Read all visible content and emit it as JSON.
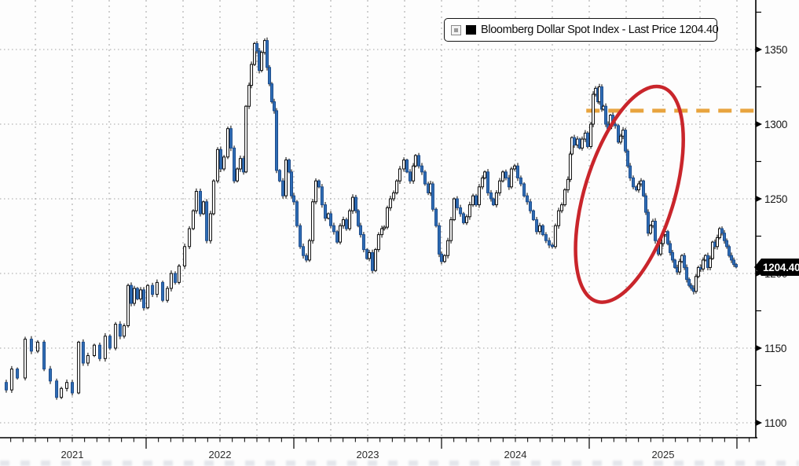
{
  "legend": {
    "label": "Bloomberg Dollar Spot Index - Last Price 1204.40"
  },
  "price_tag": {
    "text": "1204.40"
  },
  "colors": {
    "candle_up_fill": "#ffffff",
    "candle_down_fill": "#2e6cb5",
    "candle_up_stroke": "#0a0a0a",
    "candle_down_stroke": "#1c4c8c",
    "wick": "#000000",
    "grid": "#a4a4a4",
    "axis": "#000000",
    "highlight_red": "#c9252b",
    "resistance_orange": "#e8a43f",
    "tag_bg": "#000000",
    "tag_text": "#ffffff"
  },
  "chart_data": {
    "type": "candlestick",
    "title": "Bloomberg Dollar Spot Index",
    "legend_entry": "Bloomberg Dollar Spot Index - Last Price 1204.40",
    "last_price": 1204.4,
    "x_ticks": [
      "2021",
      "2022",
      "2023",
      "2024",
      "2025"
    ],
    "y_ticks": [
      1350,
      1300,
      1250,
      1200,
      1150,
      1100
    ],
    "y_minor_ticks": [
      1375,
      1325,
      1275,
      1225,
      1175,
      1125
    ],
    "ylim": [
      1085,
      1383
    ],
    "xlim_years": [
      2021.0,
      2026.13
    ],
    "grid": "dotted",
    "legend_position": "top-right",
    "points": [
      [
        2021.011,
        1127
      ],
      [
        2021.053,
        1122
      ],
      [
        2021.09,
        1136
      ],
      [
        2021.128,
        1130
      ],
      [
        2021.181,
        1156
      ],
      [
        2021.223,
        1148
      ],
      [
        2021.266,
        1154
      ],
      [
        2021.309,
        1136
      ],
      [
        2021.351,
        1128
      ],
      [
        2021.394,
        1117
      ],
      [
        2021.426,
        1123
      ],
      [
        2021.463,
        1127
      ],
      [
        2021.5,
        1120
      ],
      [
        2021.543,
        1154
      ],
      [
        2021.574,
        1140
      ],
      [
        2021.606,
        1145
      ],
      [
        2021.649,
        1152
      ],
      [
        2021.686,
        1143
      ],
      [
        2021.723,
        1158
      ],
      [
        2021.755,
        1150
      ],
      [
        2021.793,
        1166
      ],
      [
        2021.824,
        1158
      ],
      [
        2021.851,
        1165
      ],
      [
        2021.878,
        1192
      ],
      [
        2021.899,
        1180
      ],
      [
        2021.92,
        1190
      ],
      [
        2021.941,
        1183
      ],
      [
        2021.963,
        1189
      ],
      [
        2021.984,
        1177
      ],
      [
        2022.011,
        1192
      ],
      [
        2022.043,
        1186
      ],
      [
        2022.074,
        1194
      ],
      [
        2022.112,
        1182
      ],
      [
        2022.144,
        1190
      ],
      [
        2022.17,
        1200
      ],
      [
        2022.197,
        1194
      ],
      [
        2022.223,
        1205
      ],
      [
        2022.261,
        1218
      ],
      [
        2022.293,
        1230
      ],
      [
        2022.319,
        1242
      ],
      [
        2022.34,
        1255
      ],
      [
        2022.367,
        1240
      ],
      [
        2022.388,
        1248
      ],
      [
        2022.41,
        1222
      ],
      [
        2022.436,
        1240
      ],
      [
        2022.457,
        1262
      ],
      [
        2022.484,
        1283
      ],
      [
        2022.505,
        1270
      ],
      [
        2022.527,
        1278
      ],
      [
        2022.553,
        1297
      ],
      [
        2022.574,
        1284
      ],
      [
        2022.596,
        1262
      ],
      [
        2022.617,
        1270
      ],
      [
        2022.638,
        1277
      ],
      [
        2022.66,
        1268
      ],
      [
        2022.676,
        1312
      ],
      [
        2022.697,
        1326
      ],
      [
        2022.713,
        1340
      ],
      [
        2022.734,
        1354
      ],
      [
        2022.75,
        1349
      ],
      [
        2022.766,
        1336
      ],
      [
        2022.782,
        1348
      ],
      [
        2022.803,
        1356
      ],
      [
        2022.819,
        1338
      ],
      [
        2022.835,
        1327
      ],
      [
        2022.851,
        1315
      ],
      [
        2022.867,
        1309
      ],
      [
        2022.883,
        1269
      ],
      [
        2022.904,
        1262
      ],
      [
        2022.926,
        1252
      ],
      [
        2022.947,
        1276
      ],
      [
        2022.968,
        1268
      ],
      [
        2022.984,
        1252
      ],
      [
        2023.0,
        1248
      ],
      [
        2023.021,
        1232
      ],
      [
        2023.043,
        1218
      ],
      [
        2023.064,
        1212
      ],
      [
        2023.085,
        1209
      ],
      [
        2023.106,
        1222
      ],
      [
        2023.128,
        1248
      ],
      [
        2023.149,
        1262
      ],
      [
        2023.17,
        1258
      ],
      [
        2023.191,
        1246
      ],
      [
        2023.213,
        1237
      ],
      [
        2023.234,
        1240
      ],
      [
        2023.25,
        1232
      ],
      [
        2023.271,
        1228
      ],
      [
        2023.293,
        1221
      ],
      [
        2023.314,
        1232
      ],
      [
        2023.335,
        1236
      ],
      [
        2023.356,
        1230
      ],
      [
        2023.378,
        1242
      ],
      [
        2023.399,
        1251
      ],
      [
        2023.42,
        1242
      ],
      [
        2023.436,
        1232
      ],
      [
        2023.452,
        1226
      ],
      [
        2023.473,
        1216
      ],
      [
        2023.495,
        1210
      ],
      [
        2023.511,
        1214
      ],
      [
        2023.532,
        1202
      ],
      [
        2023.553,
        1216
      ],
      [
        2023.574,
        1226
      ],
      [
        2023.596,
        1230
      ],
      [
        2023.612,
        1231
      ],
      [
        2023.633,
        1244
      ],
      [
        2023.654,
        1250
      ],
      [
        2023.676,
        1254
      ],
      [
        2023.697,
        1262
      ],
      [
        2023.718,
        1270
      ],
      [
        2023.745,
        1276
      ],
      [
        2023.766,
        1268
      ],
      [
        2023.787,
        1262
      ],
      [
        2023.809,
        1272
      ],
      [
        2023.824,
        1279
      ],
      [
        2023.846,
        1272
      ],
      [
        2023.867,
        1268
      ],
      [
        2023.888,
        1260
      ],
      [
        2023.91,
        1254
      ],
      [
        2023.926,
        1260
      ],
      [
        2023.941,
        1243
      ],
      [
        2023.963,
        1232
      ],
      [
        2023.984,
        1213
      ],
      [
        2024.0,
        1208
      ],
      [
        2024.021,
        1212
      ],
      [
        2024.043,
        1222
      ],
      [
        2024.064,
        1236
      ],
      [
        2024.085,
        1250
      ],
      [
        2024.106,
        1244
      ],
      [
        2024.128,
        1240
      ],
      [
        2024.149,
        1234
      ],
      [
        2024.17,
        1238
      ],
      [
        2024.191,
        1246
      ],
      [
        2024.213,
        1252
      ],
      [
        2024.234,
        1246
      ],
      [
        2024.255,
        1258
      ],
      [
        2024.277,
        1264
      ],
      [
        2024.293,
        1268
      ],
      [
        2024.314,
        1254
      ],
      [
        2024.335,
        1250
      ],
      [
        2024.351,
        1246
      ],
      [
        2024.372,
        1254
      ],
      [
        2024.394,
        1262
      ],
      [
        2024.415,
        1268
      ],
      [
        2024.436,
        1264
      ],
      [
        2024.457,
        1258
      ],
      [
        2024.473,
        1270
      ],
      [
        2024.495,
        1272
      ],
      [
        2024.516,
        1264
      ],
      [
        2024.537,
        1260
      ],
      [
        2024.559,
        1252
      ],
      [
        2024.58,
        1248
      ],
      [
        2024.601,
        1242
      ],
      [
        2024.622,
        1236
      ],
      [
        2024.644,
        1228
      ],
      [
        2024.665,
        1232
      ],
      [
        2024.686,
        1226
      ],
      [
        2024.707,
        1222
      ],
      [
        2024.729,
        1219
      ],
      [
        2024.75,
        1218
      ],
      [
        2024.771,
        1232
      ],
      [
        2024.793,
        1242
      ],
      [
        2024.814,
        1246
      ],
      [
        2024.835,
        1256
      ],
      [
        2024.856,
        1263
      ],
      [
        2024.872,
        1280
      ],
      [
        2024.883,
        1291
      ],
      [
        2024.899,
        1286
      ],
      [
        2024.92,
        1290
      ],
      [
        2024.936,
        1284
      ],
      [
        2024.952,
        1290
      ],
      [
        2024.973,
        1294
      ],
      [
        2024.989,
        1285
      ],
      [
        2025.011,
        1300
      ],
      [
        2025.027,
        1320
      ],
      [
        2025.043,
        1324
      ],
      [
        2025.059,
        1315
      ],
      [
        2025.069,
        1325
      ],
      [
        2025.085,
        1310
      ],
      [
        2025.096,
        1312
      ],
      [
        2025.112,
        1300
      ],
      [
        2025.128,
        1297
      ],
      [
        2025.144,
        1306
      ],
      [
        2025.16,
        1300
      ],
      [
        2025.176,
        1299
      ],
      [
        2025.197,
        1288
      ],
      [
        2025.213,
        1292
      ],
      [
        2025.229,
        1296
      ],
      [
        2025.245,
        1282
      ],
      [
        2025.261,
        1272
      ],
      [
        2025.277,
        1264
      ],
      [
        2025.298,
        1258
      ],
      [
        2025.319,
        1256
      ],
      [
        2025.335,
        1260
      ],
      [
        2025.351,
        1262
      ],
      [
        2025.367,
        1252
      ],
      [
        2025.383,
        1241
      ],
      [
        2025.399,
        1227
      ],
      [
        2025.415,
        1232
      ],
      [
        2025.431,
        1235
      ],
      [
        2025.447,
        1222
      ],
      [
        2025.468,
        1213
      ],
      [
        2025.484,
        1220
      ],
      [
        2025.5,
        1226
      ],
      [
        2025.516,
        1228
      ],
      [
        2025.532,
        1220
      ],
      [
        2025.548,
        1214
      ],
      [
        2025.564,
        1209
      ],
      [
        2025.58,
        1204
      ],
      [
        2025.596,
        1201
      ],
      [
        2025.612,
        1208
      ],
      [
        2025.628,
        1212
      ],
      [
        2025.644,
        1204
      ],
      [
        2025.66,
        1196
      ],
      [
        2025.676,
        1192
      ],
      [
        2025.691,
        1190
      ],
      [
        2025.707,
        1188
      ],
      [
        2025.723,
        1198
      ],
      [
        2025.739,
        1204
      ],
      [
        2025.755,
        1203
      ],
      [
        2025.771,
        1209
      ],
      [
        2025.787,
        1212
      ],
      [
        2025.803,
        1204
      ],
      [
        2025.819,
        1210
      ],
      [
        2025.835,
        1221
      ],
      [
        2025.851,
        1218
      ],
      [
        2025.867,
        1224
      ],
      [
        2025.883,
        1230
      ],
      [
        2025.899,
        1227
      ],
      [
        2025.915,
        1222
      ],
      [
        2025.931,
        1218
      ],
      [
        2025.947,
        1212
      ],
      [
        2025.963,
        1209
      ],
      [
        2025.979,
        1206
      ],
      [
        2025.995,
        1204.4
      ]
    ],
    "annotations": [
      {
        "kind": "hline-dashed",
        "value": 1309,
        "x_from_year": 2024.98,
        "x_to_year": 2026.13,
        "color": "#e8a43f"
      },
      {
        "kind": "ellipse",
        "center_year": 2025.272,
        "center_value": 1253,
        "width_years": 0.606,
        "height_units": 150,
        "rotation_deg": 17,
        "color": "#c9252b"
      }
    ]
  }
}
